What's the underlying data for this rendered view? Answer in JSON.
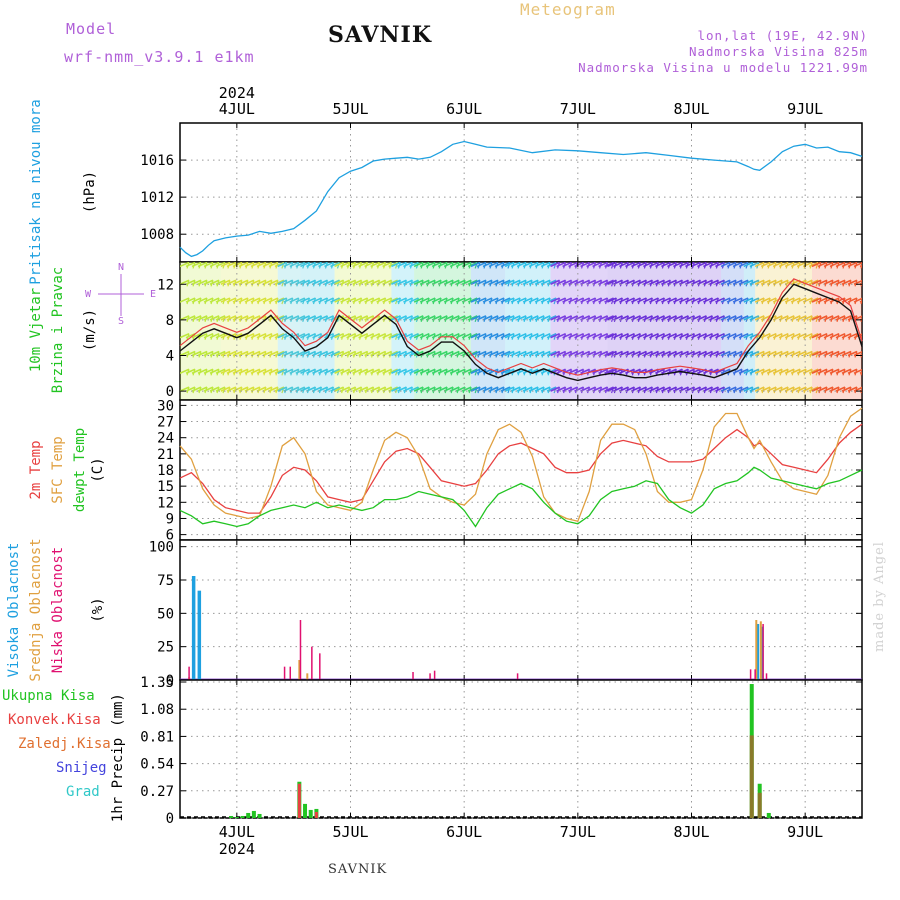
{
  "header": {
    "model_label": "Model",
    "model_name": "wrf-nmm_v3.9.1 e1km",
    "station": "SAVNIK",
    "product": "Meteogram",
    "lonlat": "lon,lat (19E, 42.9N)",
    "elevation": "Nadmorska Visina 825m",
    "model_elevation": "Nadmorska Visina u modelu 1221.99m"
  },
  "footer_station": "SAVNIK",
  "credit": "made by Angel",
  "colors": {
    "pressure": "#1ea0e0",
    "temp2m": "#e84040",
    "sfc": "#e0a040",
    "dew": "#22c422",
    "high_cloud": "#1ea0e0",
    "mid_cloud": "#e0a040",
    "low_cloud": "#e01070",
    "total_precip": "#22c422",
    "conv_precip": "#e84040",
    "frozen": "#e07030",
    "snow": "#4444dd",
    "hail": "#30c8c8"
  },
  "chart_data": [
    {
      "panel": "pressure",
      "type": "line",
      "ylabel": [
        "Pritisak na nivou mora",
        "(hPa)"
      ],
      "yticks": [
        1008,
        1012,
        1016
      ],
      "ylim": [
        1005,
        1020
      ],
      "grid": true,
      "series": [
        {
          "x": [
            3.5,
            3.55,
            3.6,
            3.65,
            3.7,
            3.75,
            3.8,
            3.9,
            4.0,
            4.1,
            4.2,
            4.3,
            4.4,
            4.5,
            4.6,
            4.7,
            4.8,
            4.9,
            5.0,
            5.1,
            5.2,
            5.3,
            5.4,
            5.5,
            5.6,
            5.7,
            5.8,
            5.9,
            6.0,
            6.1,
            6.2,
            6.4,
            6.6,
            6.8,
            7.0,
            7.2,
            7.4,
            7.6,
            7.8,
            8.0,
            8.2,
            8.4,
            8.5,
            8.55,
            8.6,
            8.7,
            8.8,
            8.9,
            9.0,
            9.1,
            9.2,
            9.3,
            9.4,
            9.5
          ],
          "y": [
            1006.6,
            1006.0,
            1005.6,
            1005.8,
            1006.2,
            1006.8,
            1007.3,
            1007.6,
            1007.8,
            1007.9,
            1008.3,
            1008.1,
            1008.3,
            1008.6,
            1009.5,
            1010.5,
            1012.6,
            1014.1,
            1014.8,
            1015.2,
            1015.9,
            1016.1,
            1016.2,
            1016.3,
            1016.1,
            1016.3,
            1016.9,
            1017.7,
            1018.0,
            1017.7,
            1017.4,
            1017.3,
            1016.8,
            1017.1,
            1017.0,
            1016.8,
            1016.6,
            1016.8,
            1016.5,
            1016.2,
            1016.0,
            1015.8,
            1015.3,
            1015.0,
            1014.9,
            1015.8,
            1016.9,
            1017.5,
            1017.7,
            1017.3,
            1017.4,
            1016.9,
            1016.8,
            1016.4
          ]
        }
      ]
    },
    {
      "panel": "wind",
      "type": "line",
      "ylabel": [
        "10m Vjetar",
        "Brzina i Pravac",
        "(m/s)"
      ],
      "compass_labels": [
        "N",
        "W",
        "E",
        "S"
      ],
      "yticks": [
        0,
        4,
        8,
        12
      ],
      "ylim": [
        -1,
        14.5
      ],
      "grid": true,
      "series": [
        {
          "x": [
            3.5,
            3.6,
            3.7,
            3.8,
            3.9,
            4.0,
            4.1,
            4.2,
            4.3,
            4.4,
            4.5,
            4.6,
            4.7,
            4.8,
            4.9,
            5.0,
            5.1,
            5.2,
            5.3,
            5.4,
            5.5,
            5.6,
            5.7,
            5.8,
            5.9,
            6.0,
            6.1,
            6.2,
            6.3,
            6.4,
            6.5,
            6.6,
            6.7,
            6.8,
            6.9,
            7.0,
            7.1,
            7.2,
            7.3,
            7.4,
            7.5,
            7.6,
            7.7,
            7.8,
            7.9,
            8.0,
            8.1,
            8.2,
            8.3,
            8.4,
            8.5,
            8.6,
            8.7,
            8.8,
            8.9,
            9.0,
            9.1,
            9.2,
            9.3,
            9.4,
            9.5
          ],
          "y": [
            4.5,
            5.5,
            6.5,
            7.0,
            6.5,
            6.0,
            6.5,
            7.5,
            8.5,
            7.0,
            6.0,
            4.5,
            5.0,
            6.0,
            8.5,
            7.5,
            6.5,
            7.5,
            8.5,
            7.5,
            5.0,
            4.0,
            4.5,
            5.5,
            5.5,
            4.5,
            3.0,
            2.0,
            1.5,
            2.0,
            2.5,
            2.0,
            2.5,
            2.0,
            1.5,
            1.2,
            1.5,
            1.8,
            2.0,
            1.8,
            1.5,
            1.5,
            1.8,
            2.0,
            2.2,
            2.0,
            1.8,
            1.5,
            2.0,
            2.5,
            4.5,
            6.0,
            8.0,
            10.5,
            12.0,
            11.5,
            11.0,
            10.5,
            10.0,
            9.0,
            5.0
          ]
        }
      ]
    },
    {
      "panel": "temperature",
      "type": "line",
      "ylabel": [
        "2m Temp",
        "SFC Temp",
        "dewpt Temp",
        "(C)"
      ],
      "yticks": [
        6,
        9,
        12,
        15,
        18,
        21,
        24,
        27,
        30
      ],
      "ylim": [
        5,
        31
      ],
      "grid": true,
      "series": [
        {
          "name": "2m Temp",
          "x": [
            3.5,
            3.6,
            3.7,
            3.8,
            3.9,
            4.0,
            4.1,
            4.2,
            4.3,
            4.4,
            4.5,
            4.6,
            4.7,
            4.8,
            4.9,
            5.0,
            5.1,
            5.2,
            5.3,
            5.4,
            5.5,
            5.6,
            5.7,
            5.8,
            5.9,
            6.0,
            6.1,
            6.2,
            6.3,
            6.4,
            6.5,
            6.6,
            6.7,
            6.8,
            6.9,
            7.0,
            7.1,
            7.2,
            7.3,
            7.4,
            7.5,
            7.6,
            7.7,
            7.8,
            7.9,
            8.0,
            8.1,
            8.2,
            8.3,
            8.4,
            8.5,
            8.55,
            8.6,
            8.7,
            8.8,
            8.9,
            9.0,
            9.1,
            9.2,
            9.3,
            9.4,
            9.5
          ],
          "y": [
            16.5,
            17.5,
            15.5,
            12.5,
            11.0,
            10.5,
            10.0,
            10.0,
            13.0,
            17.0,
            18.5,
            18.0,
            16.0,
            13.0,
            12.5,
            12.0,
            12.5,
            16.0,
            19.5,
            21.5,
            22.0,
            21.0,
            18.5,
            16.0,
            15.5,
            15.0,
            15.5,
            18.0,
            21.0,
            22.5,
            23.0,
            22.0,
            21.0,
            18.5,
            17.5,
            17.5,
            18.0,
            21.0,
            23.0,
            23.5,
            23.0,
            22.5,
            20.5,
            19.5,
            19.5,
            19.5,
            20.0,
            22.0,
            24.0,
            25.5,
            24.0,
            22.5,
            23.0,
            21.0,
            19.0,
            18.5,
            18.0,
            17.5,
            20.0,
            23.0,
            25.0,
            26.5
          ]
        },
        {
          "name": "SFC Temp",
          "x": [
            3.5,
            3.6,
            3.7,
            3.8,
            3.9,
            4.0,
            4.1,
            4.2,
            4.3,
            4.4,
            4.5,
            4.6,
            4.7,
            4.8,
            4.9,
            5.0,
            5.1,
            5.2,
            5.3,
            5.4,
            5.5,
            5.6,
            5.7,
            5.8,
            5.9,
            6.0,
            6.1,
            6.2,
            6.3,
            6.4,
            6.5,
            6.6,
            6.7,
            6.8,
            6.9,
            7.0,
            7.1,
            7.2,
            7.3,
            7.4,
            7.5,
            7.6,
            7.7,
            7.8,
            7.9,
            8.0,
            8.1,
            8.2,
            8.3,
            8.4,
            8.5,
            8.55,
            8.6,
            8.7,
            8.8,
            8.9,
            9.0,
            9.1,
            9.2,
            9.3,
            9.4,
            9.5
          ],
          "y": [
            22.5,
            20.0,
            14.5,
            11.5,
            10.0,
            9.5,
            9.0,
            9.5,
            15.0,
            22.5,
            24.0,
            21.0,
            14.0,
            11.5,
            11.0,
            10.5,
            12.0,
            18.0,
            23.5,
            25.0,
            24.0,
            20.5,
            14.5,
            13.0,
            12.0,
            11.5,
            13.5,
            21.0,
            25.5,
            26.5,
            25.0,
            20.5,
            13.0,
            10.0,
            9.0,
            8.5,
            14.0,
            23.5,
            26.5,
            26.5,
            25.5,
            21.0,
            14.0,
            12.0,
            12.0,
            12.5,
            18.0,
            26.0,
            28.5,
            28.5,
            24.0,
            22.0,
            23.5,
            19.5,
            16.0,
            14.5,
            14.0,
            13.5,
            17.0,
            24.0,
            28.0,
            29.5
          ]
        },
        {
          "name": "dewpt Temp",
          "x": [
            3.5,
            3.6,
            3.7,
            3.8,
            3.9,
            4.0,
            4.1,
            4.2,
            4.3,
            4.4,
            4.5,
            4.6,
            4.7,
            4.8,
            4.9,
            5.0,
            5.1,
            5.2,
            5.3,
            5.4,
            5.5,
            5.6,
            5.7,
            5.8,
            5.9,
            6.0,
            6.1,
            6.2,
            6.3,
            6.4,
            6.5,
            6.6,
            6.7,
            6.8,
            6.9,
            7.0,
            7.1,
            7.2,
            7.3,
            7.4,
            7.5,
            7.6,
            7.7,
            7.8,
            7.9,
            8.0,
            8.1,
            8.2,
            8.3,
            8.4,
            8.5,
            8.55,
            8.6,
            8.7,
            8.8,
            8.9,
            9.0,
            9.1,
            9.2,
            9.3,
            9.4,
            9.5
          ],
          "y": [
            10.5,
            9.5,
            8.0,
            8.5,
            8.0,
            7.5,
            8.0,
            9.5,
            10.5,
            11.0,
            11.5,
            11.0,
            12.0,
            11.0,
            11.5,
            11.0,
            10.5,
            11.0,
            12.5,
            12.5,
            13.0,
            14.0,
            13.5,
            13.0,
            12.5,
            10.5,
            7.5,
            11.0,
            13.5,
            14.5,
            15.5,
            14.5,
            12.0,
            10.0,
            8.5,
            8.0,
            9.5,
            12.5,
            14.0,
            14.5,
            15.0,
            16.0,
            15.5,
            12.5,
            11.0,
            10.0,
            11.5,
            14.5,
            15.5,
            16.0,
            17.5,
            18.5,
            18.0,
            16.5,
            16.0,
            15.5,
            15.0,
            14.5,
            15.5,
            16.0,
            17.0,
            18.0
          ]
        }
      ]
    },
    {
      "panel": "clouds",
      "type": "bar",
      "ylabel": [
        "Visoka Oblacnost",
        "Srednja Oblacnost",
        "Niska Oblacnost",
        "(%)"
      ],
      "yticks": [
        0,
        25,
        50,
        75,
        100
      ],
      "ylim": [
        0,
        105
      ],
      "grid": true,
      "series": [
        {
          "name": "Visoka Oblacnost",
          "x": [
            3.62,
            3.67,
            8.58,
            8.62
          ],
          "y": [
            78,
            67,
            42,
            40
          ]
        },
        {
          "name": "Srednja Oblacnost",
          "x": [
            3.58,
            4.55,
            4.62,
            8.57,
            8.61
          ],
          "y": [
            2,
            15,
            5,
            45,
            44
          ]
        },
        {
          "name": "Niska Oblacnost",
          "x": [
            3.58,
            4.42,
            4.47,
            4.56,
            4.66,
            4.73,
            5.55,
            5.7,
            5.74,
            6.47,
            8.52,
            8.56,
            8.63,
            8.66
          ],
          "y": [
            10,
            10,
            10,
            45,
            25,
            20,
            6,
            5,
            7,
            5,
            8,
            8,
            42,
            5
          ]
        }
      ]
    },
    {
      "panel": "precip",
      "type": "bar",
      "ylabel": [
        "1hr Precip",
        "(mm)"
      ],
      "legend": [
        "Ukupna Kisa",
        "Konvek.Kisa",
        "Zaledj.Kisa",
        "Snijeg",
        "Grad"
      ],
      "yticks": [
        0,
        0.27,
        0.54,
        0.81,
        1.08,
        1.35
      ],
      "yticklabels": [
        "0",
        "0.27",
        "0.54",
        "0.81",
        "1.08",
        "1.35"
      ],
      "ylim": [
        0,
        1.37
      ],
      "grid": true,
      "series": [
        {
          "name": "Ukupna Kisa",
          "x": [
            3.95,
            4.0,
            4.05,
            4.1,
            4.15,
            4.2,
            4.55,
            4.6,
            4.65,
            4.7,
            8.53,
            8.6,
            8.68
          ],
          "y": [
            0.02,
            0.01,
            0.02,
            0.05,
            0.07,
            0.04,
            0.36,
            0.14,
            0.08,
            0.09,
            1.33,
            0.34,
            0.05
          ]
        },
        {
          "name": "Konvek.Kisa",
          "x": [
            4.55,
            4.7,
            8.53
          ],
          "y": [
            0.34,
            0.06,
            0.0
          ]
        },
        {
          "name": "Zaledj.Kisa",
          "x": [
            8.53,
            8.6
          ],
          "y": [
            0.82,
            0.25
          ]
        }
      ]
    }
  ],
  "x_axis": {
    "year": "2024",
    "day_labels": [
      "4JUL",
      "5JUL",
      "6JUL",
      "7JUL",
      "8JUL",
      "9JUL"
    ],
    "day_positions": [
      4,
      5,
      6,
      7,
      8,
      9
    ],
    "range": [
      3.5,
      9.5
    ]
  }
}
